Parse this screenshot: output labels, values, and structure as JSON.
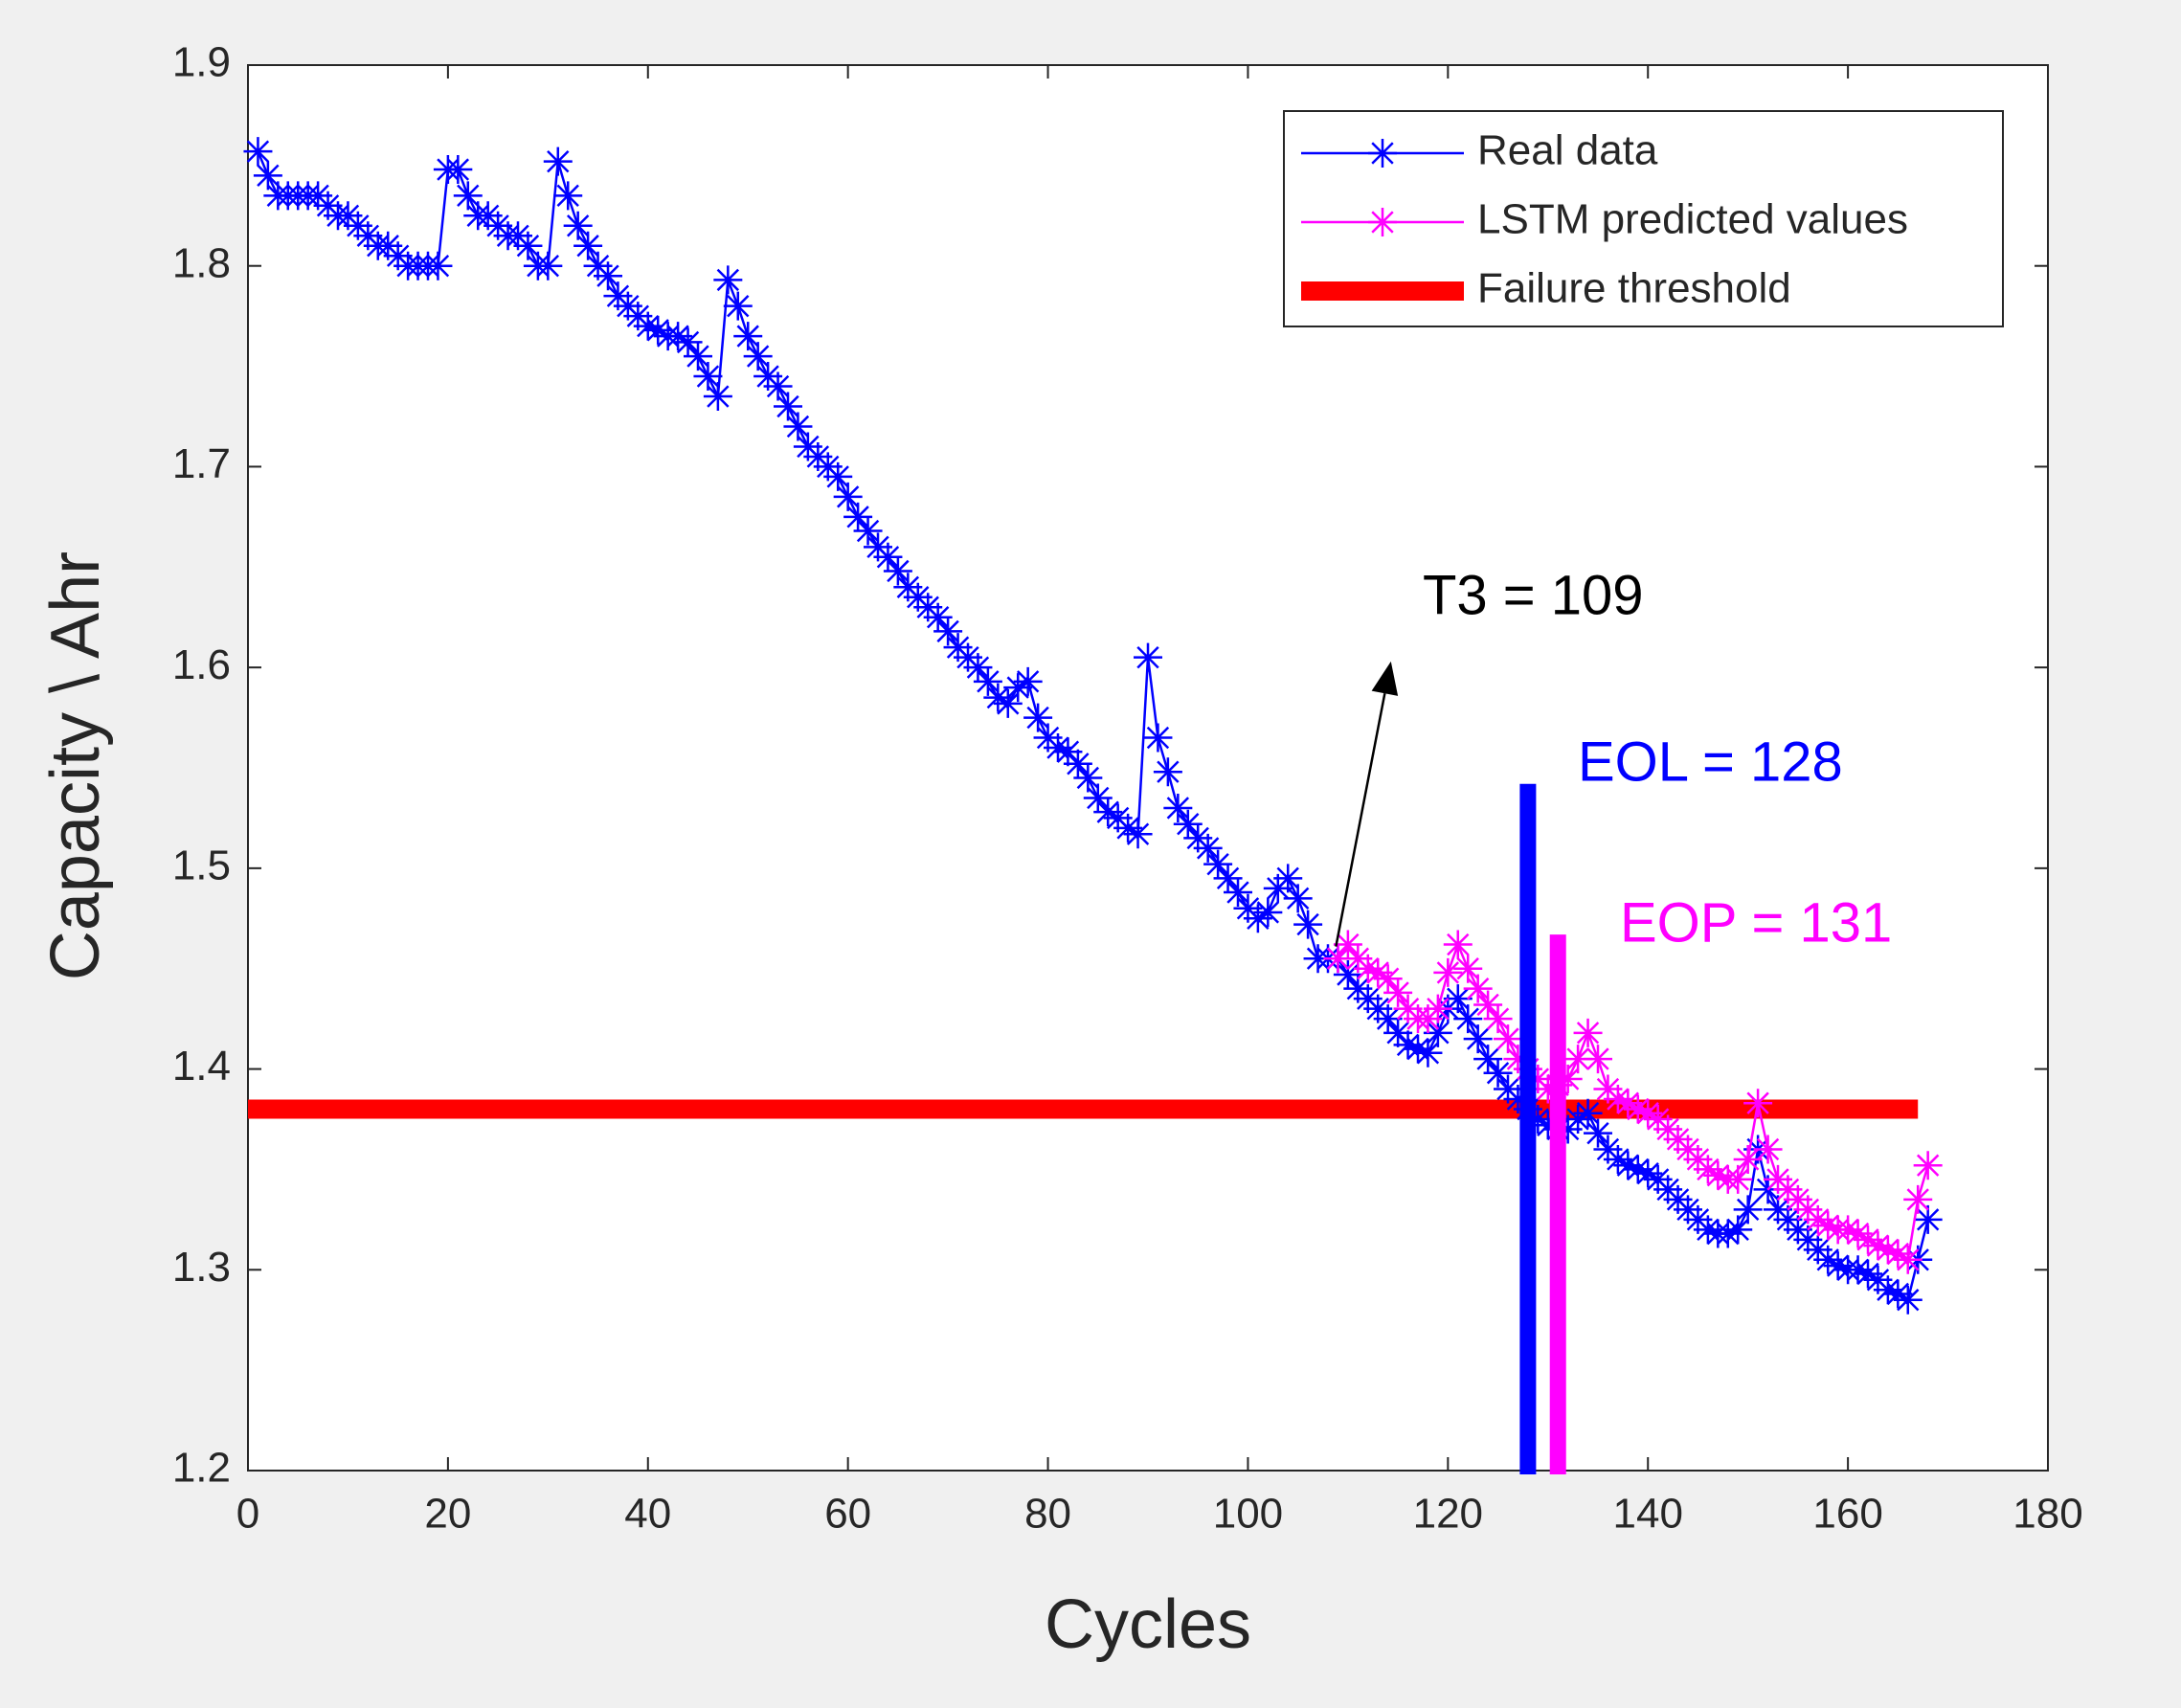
{
  "chart_data": {
    "type": "line",
    "xlabel": "Cycles",
    "ylabel": "Capacity \\ Ahr",
    "xlim": [
      0,
      180
    ],
    "xticks": [
      0,
      20,
      40,
      60,
      80,
      100,
      120,
      140,
      160,
      180
    ],
    "ylim": [
      1.2,
      1.9
    ],
    "yticks": [
      1.2,
      1.3,
      1.4,
      1.5,
      1.6,
      1.7,
      1.8,
      1.9
    ],
    "legend": "upper right",
    "series": [
      {
        "name": "Real data",
        "color": "#0000ff",
        "marker": "*",
        "x": [
          1,
          2,
          3,
          4,
          5,
          6,
          7,
          8,
          9,
          10,
          11,
          12,
          13,
          14,
          15,
          16,
          17,
          18,
          19,
          20,
          21,
          22,
          23,
          24,
          25,
          26,
          27,
          28,
          29,
          30,
          31,
          32,
          33,
          34,
          35,
          36,
          37,
          38,
          39,
          40,
          41,
          42,
          43,
          44,
          45,
          46,
          47,
          48,
          49,
          50,
          51,
          52,
          53,
          54,
          55,
          56,
          57,
          58,
          59,
          60,
          61,
          62,
          63,
          64,
          65,
          66,
          67,
          68,
          69,
          70,
          71,
          72,
          73,
          74,
          75,
          76,
          77,
          78,
          79,
          80,
          81,
          82,
          83,
          84,
          85,
          86,
          87,
          88,
          89,
          90,
          91,
          92,
          93,
          94,
          95,
          96,
          97,
          98,
          99,
          100,
          101,
          102,
          103,
          104,
          105,
          106,
          107,
          108,
          109,
          110,
          111,
          112,
          113,
          114,
          115,
          116,
          117,
          118,
          119,
          120,
          121,
          122,
          123,
          124,
          125,
          126,
          127,
          128,
          129,
          130,
          131,
          132,
          133,
          134,
          135,
          136,
          137,
          138,
          139,
          140,
          141,
          142,
          143,
          144,
          145,
          146,
          147,
          148,
          149,
          150,
          151,
          152,
          153,
          154,
          155,
          156,
          157,
          158,
          159,
          160,
          161,
          162,
          163,
          164,
          165,
          166,
          167,
          168
        ],
        "values": [
          1.857,
          1.845,
          1.835,
          1.835,
          1.835,
          1.835,
          1.835,
          1.83,
          1.825,
          1.825,
          1.82,
          1.815,
          1.81,
          1.81,
          1.805,
          1.8,
          1.8,
          1.8,
          1.8,
          1.848,
          1.848,
          1.835,
          1.825,
          1.825,
          1.82,
          1.815,
          1.815,
          1.81,
          1.8,
          1.8,
          1.852,
          1.835,
          1.82,
          1.81,
          1.8,
          1.795,
          1.785,
          1.78,
          1.775,
          1.77,
          1.768,
          1.765,
          1.765,
          1.762,
          1.755,
          1.745,
          1.735,
          1.793,
          1.78,
          1.765,
          1.755,
          1.745,
          1.74,
          1.73,
          1.72,
          1.71,
          1.705,
          1.7,
          1.695,
          1.685,
          1.675,
          1.668,
          1.66,
          1.655,
          1.648,
          1.64,
          1.635,
          1.63,
          1.625,
          1.618,
          1.61,
          1.605,
          1.6,
          1.593,
          1.585,
          1.582,
          1.59,
          1.593,
          1.575,
          1.565,
          1.56,
          1.558,
          1.552,
          1.545,
          1.535,
          1.528,
          1.525,
          1.52,
          1.517,
          1.605,
          1.565,
          1.548,
          1.53,
          1.522,
          1.515,
          1.51,
          1.502,
          1.495,
          1.488,
          1.48,
          1.475,
          1.478,
          1.49,
          1.495,
          1.485,
          1.472,
          1.455,
          1.455,
          1.455,
          1.447,
          1.44,
          1.435,
          1.43,
          1.425,
          1.418,
          1.412,
          1.41,
          1.408,
          1.418,
          1.43,
          1.435,
          1.425,
          1.415,
          1.405,
          1.398,
          1.39,
          1.385,
          1.38,
          1.375,
          1.372,
          1.37,
          1.37,
          1.375,
          1.378,
          1.368,
          1.36,
          1.355,
          1.352,
          1.35,
          1.348,
          1.345,
          1.34,
          1.335,
          1.33,
          1.325,
          1.32,
          1.318,
          1.318,
          1.32,
          1.33,
          1.36,
          1.34,
          1.33,
          1.325,
          1.32,
          1.315,
          1.31,
          1.305,
          1.302,
          1.3,
          1.3,
          1.298,
          1.295,
          1.29,
          1.288,
          1.285,
          1.305,
          1.325
        ]
      },
      {
        "name": "LSTM predicted values",
        "color": "#ff00ff",
        "marker": "*",
        "x": [
          109,
          110,
          111,
          112,
          113,
          114,
          115,
          116,
          117,
          118,
          119,
          120,
          121,
          122,
          123,
          124,
          125,
          126,
          127,
          128,
          129,
          130,
          131,
          132,
          133,
          134,
          135,
          136,
          137,
          138,
          139,
          140,
          141,
          142,
          143,
          144,
          145,
          146,
          147,
          148,
          149,
          150,
          151,
          152,
          153,
          154,
          155,
          156,
          157,
          158,
          159,
          160,
          161,
          162,
          163,
          164,
          165,
          166,
          167,
          168
        ],
        "values": [
          1.455,
          1.462,
          1.455,
          1.45,
          1.448,
          1.445,
          1.438,
          1.43,
          1.425,
          1.425,
          1.43,
          1.448,
          1.462,
          1.45,
          1.44,
          1.432,
          1.425,
          1.415,
          1.405,
          1.4,
          1.395,
          1.39,
          1.392,
          1.395,
          1.405,
          1.418,
          1.405,
          1.39,
          1.385,
          1.383,
          1.38,
          1.378,
          1.375,
          1.37,
          1.365,
          1.36,
          1.355,
          1.35,
          1.347,
          1.345,
          1.345,
          1.355,
          1.383,
          1.36,
          1.345,
          1.34,
          1.335,
          1.33,
          1.325,
          1.322,
          1.32,
          1.32,
          1.318,
          1.315,
          1.312,
          1.31,
          1.308,
          1.305,
          1.335,
          1.352
        ]
      },
      {
        "name": "Failure threshold",
        "color": "#ff0000",
        "marker": "none",
        "x": [
          0,
          167
        ],
        "values": [
          1.38,
          1.38
        ]
      }
    ],
    "vlines": [
      {
        "label": "EOL = 128",
        "x": 128,
        "y": [
          1.2,
          1.542
        ],
        "color": "#0000ff"
      },
      {
        "label": "EOP = 131",
        "x": 131,
        "y": [
          1.2,
          1.467
        ],
        "color": "#ff00ff"
      }
    ],
    "arrow": {
      "label": "T3 = 109",
      "x": [
        108.8,
        114.3
      ],
      "y": [
        1.461,
        1.603
      ],
      "color": "#000000"
    }
  }
}
